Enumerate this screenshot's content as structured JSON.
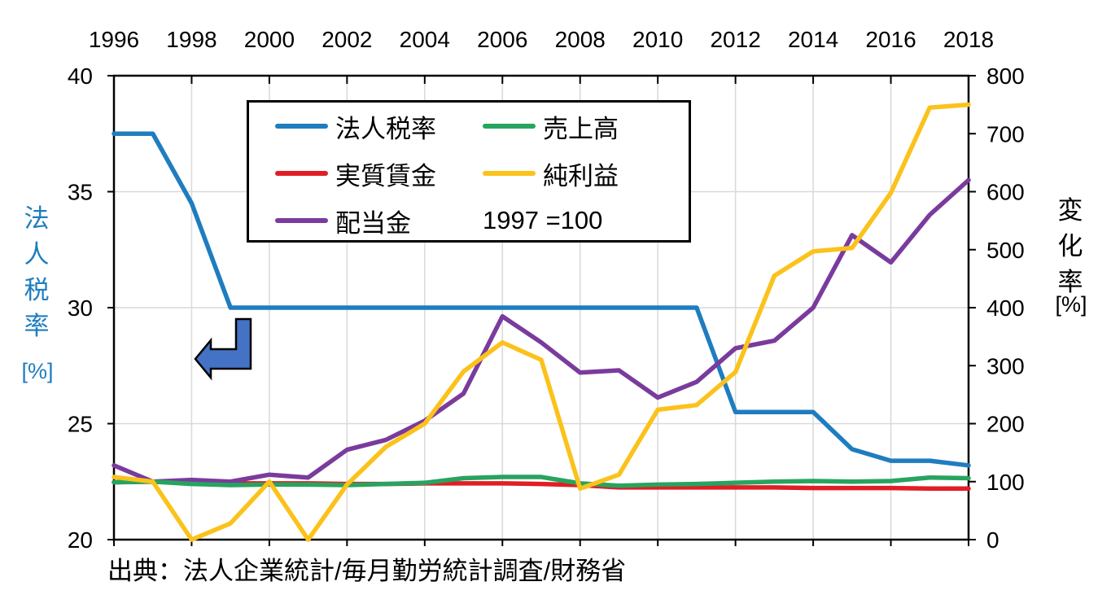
{
  "source": "出典：法人企業統計/毎月勤労統計調査/財務省",
  "legend": {
    "items": [
      {
        "label": "法人税率",
        "color": "#1F7DBF"
      },
      {
        "label": "実質賃金",
        "color": "#E01E25"
      },
      {
        "label": "配当金",
        "color": "#7A3B9D"
      },
      {
        "label": "売上高",
        "color": "#27A45F"
      },
      {
        "label": "純利益",
        "color": "#FBC21B"
      }
    ],
    "note": "1997 =100"
  },
  "annotation": {
    "type": "bent-arrow-pointing-left",
    "fill_color": "#4472C4",
    "outline_color": "#000000"
  },
  "chart_data": {
    "type": "line",
    "x": [
      1996,
      1997,
      1998,
      1999,
      2000,
      2001,
      2002,
      2003,
      2004,
      2005,
      2006,
      2007,
      2008,
      2009,
      2010,
      2011,
      2012,
      2013,
      2014,
      2015,
      2016,
      2017,
      2018
    ],
    "x_ticks": [
      1996,
      1998,
      2000,
      2002,
      2004,
      2006,
      2008,
      2010,
      2012,
      2014,
      2016,
      2018
    ],
    "series": [
      {
        "name": "法人税率",
        "axis": "left",
        "color": "#1F7DBF",
        "values": [
          37.5,
          37.5,
          34.5,
          30,
          30,
          30,
          30,
          30,
          30,
          30,
          30,
          30,
          30,
          30,
          30,
          30,
          25.5,
          25.5,
          25.5,
          23.9,
          23.4,
          23.4,
          23.2
        ]
      },
      {
        "name": "実質賃金",
        "axis": "right",
        "color": "#E01E25",
        "values": [
          99,
          100,
          98,
          97,
          97,
          97,
          96,
          96,
          97,
          97,
          97,
          96,
          94,
          90,
          90,
          90,
          90,
          90,
          89,
          89,
          89,
          88,
          88
        ]
      },
      {
        "name": "配当金",
        "axis": "right",
        "color": "#7A3B9D",
        "values": [
          128,
          100,
          103,
          100,
          112,
          107,
          155,
          172,
          205,
          252,
          385,
          340,
          288,
          292,
          245,
          272,
          330,
          343,
          400,
          525,
          478,
          560,
          620
        ]
      },
      {
        "name": "売上高",
        "axis": "right",
        "color": "#27A45F",
        "values": [
          99,
          100,
          96,
          94,
          95,
          95,
          94,
          96,
          98,
          106,
          108,
          108,
          97,
          93,
          95,
          96,
          98,
          100,
          101,
          100,
          101,
          107,
          106
        ]
      },
      {
        "name": "純利益",
        "axis": "right",
        "color": "#FBC21B",
        "values": [
          108,
          100,
          0,
          28,
          100,
          0,
          95,
          160,
          200,
          290,
          340,
          310,
          88,
          112,
          224,
          232,
          289,
          455,
          497,
          503,
          598,
          745,
          750
        ]
      }
    ],
    "left_axis": {
      "title": "法人税率",
      "unit": "[%]",
      "min": 20,
      "max": 40,
      "ticks": [
        40,
        35,
        30,
        25,
        20
      ],
      "color": "#1F7DBF"
    },
    "right_axis": {
      "title": "変化率",
      "unit": "[%]",
      "min": 0,
      "max": 800,
      "ticks": [
        800,
        700,
        600,
        500,
        400,
        300,
        200,
        100,
        0
      ]
    },
    "baseline_note": "1997 =100",
    "grid": {
      "color": "#D9D9D9",
      "vertical_years": [
        1998,
        2000,
        2002,
        2004,
        2006,
        2008,
        2010,
        2012,
        2014,
        2016,
        2018
      ],
      "horizontal_left_values": [
        25,
        30,
        35
      ]
    },
    "legend_position": "top-left-inside"
  }
}
